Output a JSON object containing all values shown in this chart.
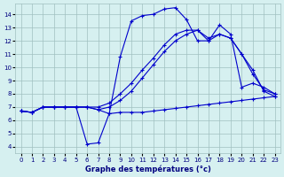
{
  "xlabel": "Graphe des températures (°c)",
  "background_color": "#d6f0f0",
  "line_color": "#0000cc",
  "grid_color": "#a0c0c0",
  "xlim": [
    -0.5,
    23.5
  ],
  "ylim": [
    3.5,
    14.8
  ],
  "yticks": [
    4,
    5,
    6,
    7,
    8,
    9,
    10,
    11,
    12,
    13,
    14
  ],
  "xticks": [
    0,
    1,
    2,
    3,
    4,
    5,
    6,
    7,
    8,
    9,
    10,
    11,
    12,
    13,
    14,
    15,
    16,
    17,
    18,
    19,
    20,
    21,
    22,
    23
  ],
  "line1_x": [
    0,
    1,
    2,
    3,
    4,
    5,
    6,
    7,
    8,
    9,
    10,
    11,
    12,
    13,
    14,
    15,
    16,
    17,
    18,
    19,
    20,
    21,
    22,
    23
  ],
  "line1_y": [
    6.7,
    6.6,
    7.0,
    7.0,
    7.0,
    7.0,
    7.0,
    6.8,
    6.5,
    6.6,
    6.6,
    6.6,
    6.7,
    6.8,
    6.9,
    7.0,
    7.1,
    7.2,
    7.3,
    7.4,
    7.5,
    7.6,
    7.7,
    7.8
  ],
  "line2_x": [
    0,
    1,
    2,
    3,
    4,
    5,
    6,
    7,
    8,
    9,
    10,
    11,
    12,
    13,
    14,
    15,
    16,
    17,
    18,
    19,
    20,
    21,
    22,
    23
  ],
  "line2_y": [
    6.7,
    6.6,
    7.0,
    7.0,
    7.0,
    7.0,
    7.0,
    6.8,
    7.0,
    7.5,
    8.2,
    9.2,
    10.2,
    11.2,
    12.0,
    12.5,
    12.8,
    12.2,
    12.5,
    12.2,
    11.0,
    9.5,
    8.3,
    8.0
  ],
  "line3_x": [
    0,
    1,
    2,
    3,
    4,
    5,
    6,
    7,
    8,
    9,
    10,
    11,
    12,
    13,
    14,
    15,
    16,
    17,
    18,
    19,
    20,
    21,
    22,
    23
  ],
  "line3_y": [
    6.7,
    6.6,
    7.0,
    7.0,
    7.0,
    7.0,
    4.2,
    4.3,
    6.5,
    10.8,
    13.5,
    13.9,
    14.0,
    14.4,
    14.5,
    13.6,
    12.0,
    12.0,
    13.2,
    12.5,
    8.5,
    8.8,
    8.5,
    8.0
  ],
  "line4_x": [
    0,
    1,
    2,
    3,
    4,
    5,
    6,
    7,
    8,
    9,
    10,
    11,
    12,
    13,
    14,
    15,
    16,
    17,
    18,
    19,
    20,
    21,
    22,
    23
  ],
  "line4_y": [
    6.7,
    6.6,
    7.0,
    7.0,
    7.0,
    7.0,
    7.0,
    7.0,
    7.3,
    8.0,
    8.8,
    9.8,
    10.7,
    11.7,
    12.5,
    12.8,
    12.8,
    12.0,
    12.5,
    12.2,
    11.0,
    9.8,
    8.2,
    7.8
  ]
}
